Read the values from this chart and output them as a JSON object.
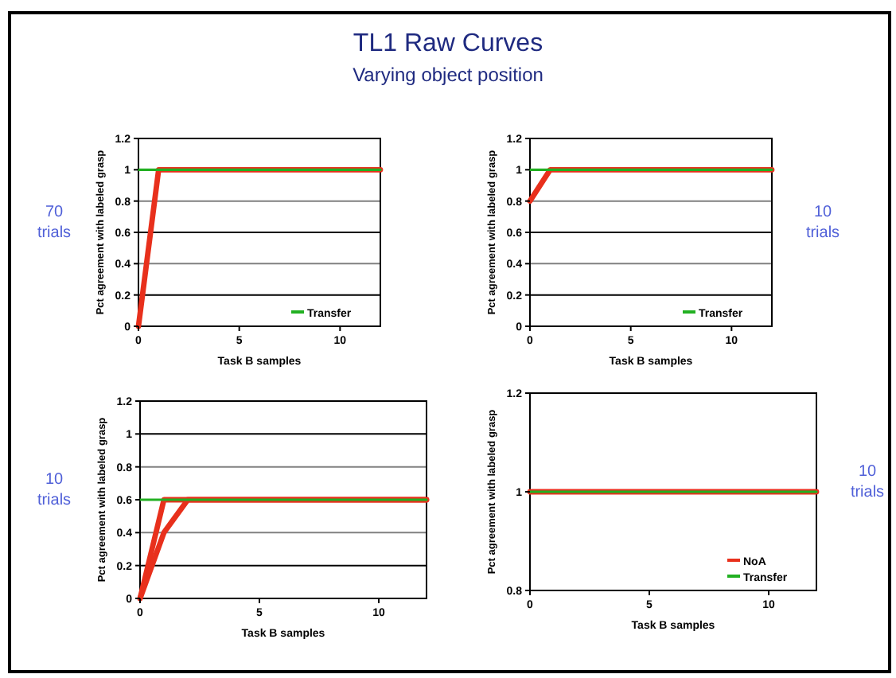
{
  "chart_data": [
    {
      "type": "line",
      "title": "TL1 Raw Curves",
      "subtitle": "Varying object position",
      "xlabel": "Task B samples",
      "ylabel": "Pct agreement with labeled grasp",
      "annotations": [
        "70 trials"
      ],
      "xlim": [
        0,
        12
      ],
      "xticks": [
        0,
        5,
        10
      ],
      "ylim": [
        0,
        1.2
      ],
      "yticks": [
        0,
        0.2,
        0.4,
        0.6,
        0.8,
        1,
        1.2
      ],
      "grid": "y",
      "legend": "bottom right",
      "marker": "none",
      "line_style": "solid",
      "series": [
        {
          "color": "#e8301c",
          "x": [
            0,
            1,
            12
          ],
          "values": [
            0,
            1,
            1
          ]
        },
        {
          "name": "Transfer",
          "color": "#22b022",
          "x": [
            0,
            12
          ],
          "values": [
            1,
            1
          ]
        }
      ]
    },
    {
      "type": "line",
      "xlabel": "Task B samples",
      "ylabel": "Pct agreement with labeled grasp",
      "annotations": [
        "10 trials"
      ],
      "xlim": [
        0,
        12
      ],
      "xticks": [
        0,
        5,
        10
      ],
      "ylim": [
        0,
        1.2
      ],
      "yticks": [
        0,
        0.2,
        0.4,
        0.6,
        0.8,
        1,
        1.2
      ],
      "grid": "y",
      "legend": "bottom right",
      "marker": "none",
      "line_style": "solid",
      "series": [
        {
          "color": "#e8301c",
          "x": [
            0,
            1,
            12
          ],
          "values": [
            0.8,
            1,
            1
          ]
        },
        {
          "name": "Transfer",
          "color": "#22b022",
          "x": [
            0,
            12
          ],
          "values": [
            1,
            1
          ]
        }
      ]
    },
    {
      "type": "line",
      "xlabel": "Task B samples",
      "ylabel": "Pct agreement with labeled grasp",
      "annotations": [
        "10 trials"
      ],
      "xlim": [
        0,
        12
      ],
      "xticks": [
        0,
        5,
        10
      ],
      "ylim": [
        0,
        1.2
      ],
      "yticks": [
        0,
        0.2,
        0.4,
        0.6,
        0.8,
        1,
        1.2
      ],
      "grid": "y",
      "legend": false,
      "marker": "none",
      "line_style": "solid",
      "series": [
        {
          "color": "#e8301c",
          "x": [
            0,
            1,
            12
          ],
          "values": [
            0,
            0.6,
            0.6
          ]
        },
        {
          "color": "#e8301c",
          "x": [
            0,
            1,
            2,
            12
          ],
          "values": [
            0,
            0.4,
            0.6,
            0.6
          ]
        },
        {
          "color": "#22b022",
          "x": [
            0,
            12
          ],
          "values": [
            0.6,
            0.6
          ]
        }
      ]
    },
    {
      "type": "line",
      "xlabel": "Task B samples",
      "ylabel": "Pct agreement with labeled grasp",
      "annotations": [
        "10 trials"
      ],
      "xlim": [
        0,
        12
      ],
      "xticks": [
        0,
        5,
        10
      ],
      "ylim": [
        0.8,
        1.2
      ],
      "yticks": [
        0.8,
        1,
        1.2
      ],
      "grid": false,
      "legend": "bottom right",
      "marker": "none",
      "line_style": "solid",
      "series": [
        {
          "name": "NoA",
          "color": "#e8301c",
          "x": [
            0,
            12
          ],
          "values": [
            1,
            1
          ]
        },
        {
          "name": "Transfer",
          "color": "#22b022",
          "x": [
            0,
            12
          ],
          "values": [
            1,
            1
          ]
        }
      ]
    }
  ]
}
